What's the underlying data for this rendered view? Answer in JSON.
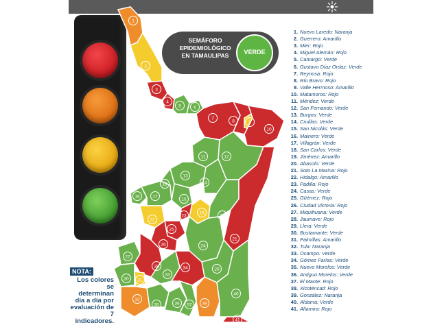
{
  "colors": {
    "rojo": "#cc2b2e",
    "verde": "#6ab04c",
    "amarillo": "#f4cc2e",
    "naranja": "#ef8d2c"
  },
  "badge": {
    "line1": "SEMÁFORO",
    "line2": "EPIDEMIOLÓGICO",
    "line3": "EN TAMAULIPAS",
    "status": "VERDE"
  },
  "nota": {
    "label": "NOTA:",
    "text": "Los colores se determinan día a día por evaluación de 7 indicadores."
  },
  "municipalities": [
    {
      "n": "1.",
      "name": "Nuevo Laredo:",
      "status": "Naranja"
    },
    {
      "n": "2.",
      "name": "Guerrero:",
      "status": "Amarillo"
    },
    {
      "n": "3.",
      "name": "Mier:",
      "status": "Rojo"
    },
    {
      "n": "4.",
      "name": "Miguel Alemán:",
      "status": "Rojo"
    },
    {
      "n": "5.",
      "name": "Camargo:",
      "status": "Verde"
    },
    {
      "n": "6.",
      "name": "Gustavo Díaz Ordaz:",
      "status": "Verde"
    },
    {
      "n": "7.",
      "name": "Reynosa:",
      "status": "Rojo"
    },
    {
      "n": "8.",
      "name": "Río Bravo:",
      "status": "Rojo"
    },
    {
      "n": "9.",
      "name": "Valle Hermoso:",
      "status": "Amarillo"
    },
    {
      "n": "10.",
      "name": "Matamoros:",
      "status": "Rojo"
    },
    {
      "n": "11.",
      "name": "Méndez:",
      "status": "Verde"
    },
    {
      "n": "12.",
      "name": "San Fernando:",
      "status": "Verde"
    },
    {
      "n": "13.",
      "name": "Burgos:",
      "status": "Verde"
    },
    {
      "n": "14.",
      "name": "Cruillas:",
      "status": "Verde"
    },
    {
      "n": "15.",
      "name": "San Nicolás:",
      "status": "Verde"
    },
    {
      "n": "16.",
      "name": "Mainero:",
      "status": "Verde"
    },
    {
      "n": "17.",
      "name": "Villagrán:",
      "status": "Verde"
    },
    {
      "n": "18.",
      "name": "San Carlos:",
      "status": "Verde"
    },
    {
      "n": "19.",
      "name": "Jiménez:",
      "status": "Amarillo"
    },
    {
      "n": "20.",
      "name": "Abasolo:",
      "status": "Verde"
    },
    {
      "n": "21.",
      "name": "Soto La Marina:",
      "status": "Rojo"
    },
    {
      "n": "22.",
      "name": "Hidalgo:",
      "status": "Amarillo"
    },
    {
      "n": "23.",
      "name": "Padilla:",
      "status": "Rojo"
    },
    {
      "n": "24.",
      "name": "Casas:",
      "status": "Verde"
    },
    {
      "n": "25.",
      "name": "Güémez:",
      "status": "Rojo"
    },
    {
      "n": "26.",
      "name": "Ciudad Victoria:",
      "status": "Rojo"
    },
    {
      "n": "27.",
      "name": "Miquihuana:",
      "status": "Verde"
    },
    {
      "n": "28.",
      "name": "Jaumave:",
      "status": "Rojo"
    },
    {
      "n": "29.",
      "name": "Llera:",
      "status": "Verde"
    },
    {
      "n": "30.",
      "name": "Bustamante:",
      "status": "Verde"
    },
    {
      "n": "31.",
      "name": "Palmillas:",
      "status": "Amarillo"
    },
    {
      "n": "32.",
      "name": "Tula:",
      "status": "Naranja"
    },
    {
      "n": "33.",
      "name": "Ocampo:",
      "status": "Verde"
    },
    {
      "n": "34.",
      "name": "Gómez Farías:",
      "status": "Verde"
    },
    {
      "n": "35.",
      "name": "Nuevo Morelos:",
      "status": "Verde"
    },
    {
      "n": "36.",
      "name": "Antiguo Morelos:",
      "status": "Verde"
    },
    {
      "n": "37.",
      "name": "El Mante:",
      "status": "Rojo"
    },
    {
      "n": "38.",
      "name": "Xicoténcatl:",
      "status": "Rojo"
    },
    {
      "n": "39.",
      "name": "González:",
      "status": "Naranja"
    },
    {
      "n": "40.",
      "name": "Aldama:",
      "status": "Verde"
    },
    {
      "n": "41.",
      "name": "Altamira:",
      "status": "Rojo"
    }
  ]
}
